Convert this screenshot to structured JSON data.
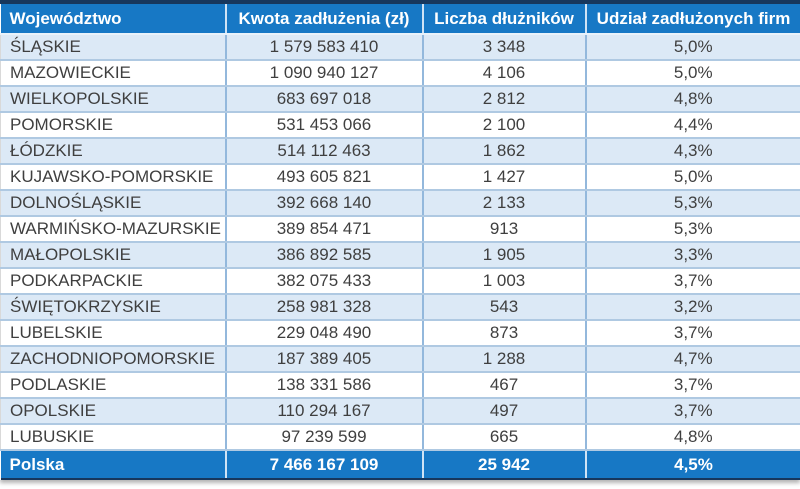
{
  "chart_data": {
    "type": "table",
    "columns": [
      "Województwo",
      "Kwota zadłużenia (zł)",
      "Liczba dłużników",
      "Udział zadłużonych firm"
    ],
    "rows": [
      [
        "ŚLĄSKIE",
        "1 579 583 410",
        "3 348",
        "5,0%"
      ],
      [
        "MAZOWIECKIE",
        "1 090 940 127",
        "4 106",
        "5,0%"
      ],
      [
        "WIELKOPOLSKIE",
        "683 697 018",
        "2 812",
        "4,8%"
      ],
      [
        "POMORSKIE",
        "531 453 066",
        "2 100",
        "4,4%"
      ],
      [
        "ŁÓDZKIE",
        "514 112 463",
        "1 862",
        "4,3%"
      ],
      [
        "KUJAWSKO-POMORSKIE",
        "493 605 821",
        "1 427",
        "5,0%"
      ],
      [
        "DOLNOŚLĄSKIE",
        "392 668 140",
        "2 133",
        "5,3%"
      ],
      [
        "WARMIŃSKO-MAZURSKIE",
        "389 854 471",
        "913",
        "5,3%"
      ],
      [
        "MAŁOPOLSKIE",
        "386 892 585",
        "1 905",
        "3,3%"
      ],
      [
        "PODKARPACKIE",
        "382 075 433",
        "1 003",
        "3,7%"
      ],
      [
        "ŚWIĘTOKRZYSKIE",
        "258 981 328",
        "543",
        "3,2%"
      ],
      [
        "LUBELSKIE",
        "229 048 490",
        "873",
        "3,7%"
      ],
      [
        "ZACHODNIOPOMORSKIE",
        "187 389 405",
        "1 288",
        "4,7%"
      ],
      [
        "PODLASKIE",
        "138 331 586",
        "467",
        "3,7%"
      ],
      [
        "OPOLSKIE",
        "110 294 167",
        "497",
        "3,7%"
      ],
      [
        "LUBUSKIE",
        "97 239 599",
        "665",
        "4,8%"
      ]
    ],
    "footer": [
      "Polska",
      "7 466 167 109",
      "25 942",
      "4,5%"
    ],
    "layout_hints": {
      "header_align": [
        "left",
        "center",
        "center",
        "center"
      ],
      "grid": true,
      "zebra_striping": true
    }
  },
  "colors": {
    "header_bg": "#1778C5",
    "header_text": "#FFFFFF",
    "top_border": "#17375D",
    "row_alt_bg": "#DCE9F6",
    "row_bg": "#FFFFFF",
    "grid_vertical": "#93B8DC",
    "grid_horizontal": "#AFC9E2",
    "body_text": "#3F3F3F",
    "footer_bg": "#1778C5",
    "footer_text": "#FFFFFF"
  }
}
